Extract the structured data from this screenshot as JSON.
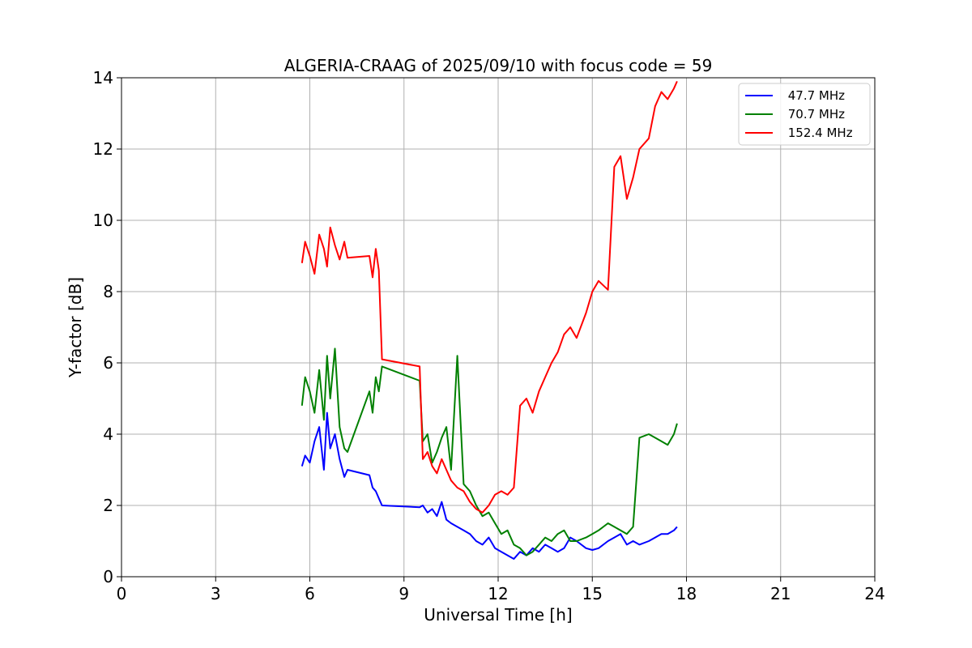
{
  "chart_data": {
    "type": "line",
    "title": "ALGERIA-CRAAG of 2025/09/10 with focus code = 59",
    "xlabel": "Universal Time [h]",
    "ylabel": "Y-factor [dB]",
    "xlim": [
      0,
      24
    ],
    "ylim": [
      0,
      14
    ],
    "xticks": [
      0,
      3,
      6,
      9,
      12,
      15,
      18,
      21,
      24
    ],
    "yticks": [
      0,
      2,
      4,
      6,
      8,
      10,
      12,
      14
    ],
    "grid": true,
    "legend_position": "top-right",
    "series": [
      {
        "name": " 47.7 MHz",
        "color": "#0000ff",
        "x": [
          5.75,
          5.85,
          6.0,
          6.15,
          6.3,
          6.45,
          6.55,
          6.65,
          6.8,
          6.95,
          7.1,
          7.2,
          7.9,
          8.0,
          8.1,
          8.2,
          8.3,
          9.5,
          9.6,
          9.75,
          9.9,
          10.05,
          10.2,
          10.35,
          10.5,
          10.7,
          10.9,
          11.1,
          11.3,
          11.5,
          11.7,
          11.9,
          12.1,
          12.3,
          12.5,
          12.7,
          12.9,
          13.1,
          13.3,
          13.5,
          13.7,
          13.9,
          14.1,
          14.3,
          14.5,
          14.8,
          15.0,
          15.2,
          15.5,
          15.7,
          15.9,
          16.1,
          16.3,
          16.5,
          16.8,
          17.0,
          17.2,
          17.4,
          17.6,
          17.7
        ],
        "y": [
          3.1,
          3.4,
          3.2,
          3.8,
          4.2,
          3.0,
          4.6,
          3.6,
          4.0,
          3.3,
          2.8,
          3.0,
          2.85,
          2.5,
          2.4,
          2.2,
          2.0,
          1.95,
          2.0,
          1.8,
          1.9,
          1.7,
          2.1,
          1.6,
          1.5,
          1.4,
          1.3,
          1.2,
          1.0,
          0.9,
          1.1,
          0.8,
          0.7,
          0.6,
          0.5,
          0.7,
          0.6,
          0.8,
          0.7,
          0.9,
          0.8,
          0.7,
          0.8,
          1.1,
          1.0,
          0.8,
          0.75,
          0.8,
          1.0,
          1.1,
          1.2,
          0.9,
          1.0,
          0.9,
          1.0,
          1.1,
          1.2,
          1.2,
          1.3,
          1.4
        ]
      },
      {
        "name": " 70.7 MHz",
        "color": "#008000",
        "x": [
          5.75,
          5.85,
          6.0,
          6.15,
          6.3,
          6.45,
          6.55,
          6.65,
          6.8,
          6.95,
          7.1,
          7.2,
          7.9,
          8.0,
          8.1,
          8.2,
          8.3,
          9.5,
          9.6,
          9.75,
          9.9,
          10.05,
          10.2,
          10.35,
          10.5,
          10.7,
          10.9,
          11.1,
          11.3,
          11.5,
          11.7,
          11.9,
          12.1,
          12.3,
          12.5,
          12.7,
          12.9,
          13.1,
          13.3,
          13.5,
          13.7,
          13.9,
          14.1,
          14.3,
          14.5,
          14.8,
          15.0,
          15.2,
          15.5,
          15.7,
          15.9,
          16.1,
          16.3,
          16.5,
          16.8,
          17.0,
          17.2,
          17.4,
          17.6,
          17.7
        ],
        "y": [
          4.8,
          5.6,
          5.2,
          4.6,
          5.8,
          4.4,
          6.2,
          5.0,
          6.4,
          4.2,
          3.6,
          3.5,
          5.2,
          4.6,
          5.6,
          5.2,
          5.9,
          5.5,
          3.8,
          4.0,
          3.2,
          3.5,
          3.9,
          4.2,
          3.0,
          6.2,
          2.6,
          2.4,
          2.0,
          1.7,
          1.8,
          1.5,
          1.2,
          1.3,
          0.9,
          0.8,
          0.6,
          0.7,
          0.9,
          1.1,
          1.0,
          1.2,
          1.3,
          1.0,
          1.0,
          1.1,
          1.2,
          1.3,
          1.5,
          1.4,
          1.3,
          1.2,
          1.4,
          3.9,
          4.0,
          3.9,
          3.8,
          3.7,
          4.0,
          4.3
        ]
      },
      {
        "name": " 152.4 MHz",
        "color": "#ff0000",
        "x": [
          5.75,
          5.85,
          6.0,
          6.15,
          6.3,
          6.45,
          6.55,
          6.65,
          6.8,
          6.95,
          7.1,
          7.2,
          7.9,
          8.0,
          8.1,
          8.2,
          8.3,
          9.5,
          9.6,
          9.75,
          9.9,
          10.05,
          10.2,
          10.35,
          10.5,
          10.7,
          10.9,
          11.1,
          11.3,
          11.5,
          11.7,
          11.9,
          12.1,
          12.3,
          12.5,
          12.7,
          12.9,
          13.1,
          13.3,
          13.5,
          13.7,
          13.9,
          14.1,
          14.3,
          14.5,
          14.8,
          15.0,
          15.2,
          15.5,
          15.7,
          15.9,
          16.1,
          16.3,
          16.5,
          16.8,
          17.0,
          17.2,
          17.4,
          17.6,
          17.7
        ],
        "y": [
          8.8,
          9.4,
          9.0,
          8.5,
          9.6,
          9.2,
          8.7,
          9.8,
          9.3,
          8.9,
          9.4,
          8.95,
          9.0,
          8.4,
          9.2,
          8.6,
          6.1,
          5.9,
          3.3,
          3.5,
          3.1,
          2.9,
          3.3,
          3.0,
          2.7,
          2.5,
          2.4,
          2.1,
          1.9,
          1.8,
          2.0,
          2.3,
          2.4,
          2.3,
          2.5,
          4.8,
          5.0,
          4.6,
          5.2,
          5.6,
          6.0,
          6.3,
          6.8,
          7.0,
          6.7,
          7.4,
          8.0,
          8.3,
          8.05,
          11.5,
          11.8,
          10.6,
          11.2,
          12.0,
          12.3,
          13.2,
          13.6,
          13.4,
          13.7,
          13.9
        ]
      }
    ],
    "annotations": []
  }
}
